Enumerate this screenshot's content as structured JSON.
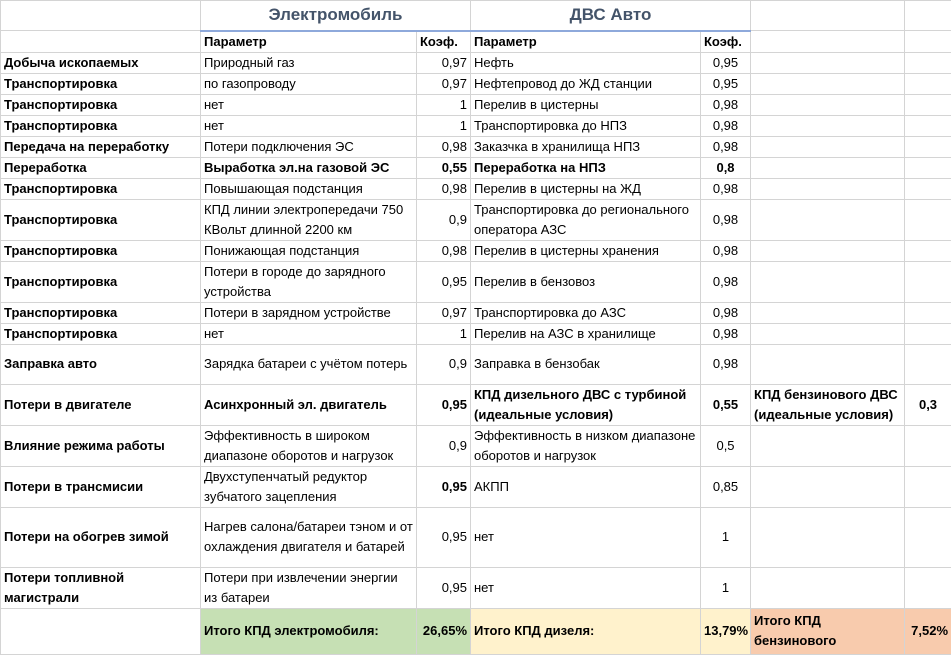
{
  "groups": {
    "ev": "Электромобиль",
    "ice": "ДВС Авто"
  },
  "headers": {
    "param": "Параметр",
    "coef": "Коэф."
  },
  "rows": [
    {
      "stage": "Добыча ископаемых",
      "ev_param": "Природный газ",
      "ev_coef": "0,97",
      "ice_param": "Нефть",
      "ice_coef": "0,95"
    },
    {
      "stage": "Транспортировка",
      "ev_param": "по газопроводу",
      "ev_coef": "0,97",
      "ice_param": "Нефтепровод до ЖД станции",
      "ice_coef": "0,95"
    },
    {
      "stage": "Транспортировка",
      "ev_param": "нет",
      "ev_coef": "1",
      "ice_param": "Перелив в цистерны",
      "ice_coef": "0,98"
    },
    {
      "stage": "Транспортировка",
      "ev_param": "нет",
      "ev_coef": "1",
      "ice_param": "Транспортировка до НПЗ",
      "ice_coef": "0,98"
    },
    {
      "stage": "Передача на переработку",
      "ev_param": "Потери подключения ЭС",
      "ev_coef": "0,98",
      "ice_param": "Заказчка в хранилища НПЗ",
      "ice_coef": "0,98"
    },
    {
      "stage": "Переработка",
      "ev_param": "Выработка эл.на газовой ЭС",
      "ev_coef": "0,55",
      "ice_param": "Переработка на НПЗ",
      "ice_coef": "0,8",
      "bold": true
    },
    {
      "stage": "Транспортировка",
      "ev_param": "Повышающая подстанция",
      "ev_coef": "0,98",
      "ice_param": "Перелив в цистерны на ЖД",
      "ice_coef": "0,98"
    },
    {
      "stage": "Транспортировка",
      "ev_param": "КПД линии электропередачи 750 КВольт длинной 2200 км",
      "ev_coef": "0,9",
      "ice_param": "Транспортировка до регионального оператора АЗС",
      "ice_coef": "0,98"
    },
    {
      "stage": "Транспортировка",
      "ev_param": "Понижающая подстанция",
      "ev_coef": "0,98",
      "ice_param": "Перелив в цистерны хранения",
      "ice_coef": "0,98"
    },
    {
      "stage": "Транспортировка",
      "ev_param": "Потери в городе до зарядного устройства",
      "ev_coef": "0,95",
      "ice_param": "Перелив в бензовоз",
      "ice_coef": "0,98"
    },
    {
      "stage": "Транспортировка",
      "ev_param": "Потери в зарядном устройстве",
      "ev_coef": "0,97",
      "ice_param": "Транспортировка до АЗС",
      "ice_coef": "0,98"
    },
    {
      "stage": "Транспортировка",
      "ev_param": "нет",
      "ev_coef": "1",
      "ice_param": "Перелив на АЗС в хранилище",
      "ice_coef": "0,98"
    },
    {
      "stage": "Заправка авто",
      "ev_param": "Зарядка батареи с учётом потерь",
      "ev_coef": "0,9",
      "ice_param": "Заправка в бензобак",
      "ice_coef": "0,98"
    },
    {
      "stage": "Потери в двигателе",
      "ev_param": "Асинхронный эл. двигатель",
      "ev_coef": "0,95",
      "ice_param": "КПД дизельного ДВС с турбиной (идеальные условия)",
      "ice_coef": "0,55",
      "extra_param": "КПД бензинового ДВС (идеальные условия)",
      "extra_coef": "0,3",
      "bold": true
    },
    {
      "stage": "Влияние режима работы",
      "ev_param": "Эффективность в широком диапазоне оборотов и нагрузок",
      "ev_coef": "0,9",
      "ice_param": "Эффективность в низком диапазоне оборотов и нагрузок",
      "ice_coef": "0,5"
    },
    {
      "stage": "Потери в трансмисии",
      "ev_param": "Двухступенчатый редуктор зубчатого зацепления",
      "ev_coef": "0,95",
      "ice_param": "АКПП",
      "ice_coef": "0,85",
      "bold_ev_coef": true
    },
    {
      "stage": "Потери на обогрев зимой",
      "ev_param": "Нагрев салона/батареи тэном и от охлаждения двигателя и батарей",
      "ev_coef": "0,95",
      "ice_param": "нет",
      "ice_coef": "1"
    },
    {
      "stage": "Потери топливной магистрали",
      "ev_param": "Потери при извлечении энергии из батареи",
      "ev_coef": "0,95",
      "ice_param": "нет",
      "ice_coef": "1"
    }
  ],
  "totals": {
    "ev_label": "Итого КПД электромобиля:",
    "ev_value": "26,65%",
    "diesel_label": "Итого КПД дизеля:",
    "diesel_value": "13,79%",
    "petrol_label": "Итого КПД бензинового",
    "petrol_value": "7,52%"
  }
}
